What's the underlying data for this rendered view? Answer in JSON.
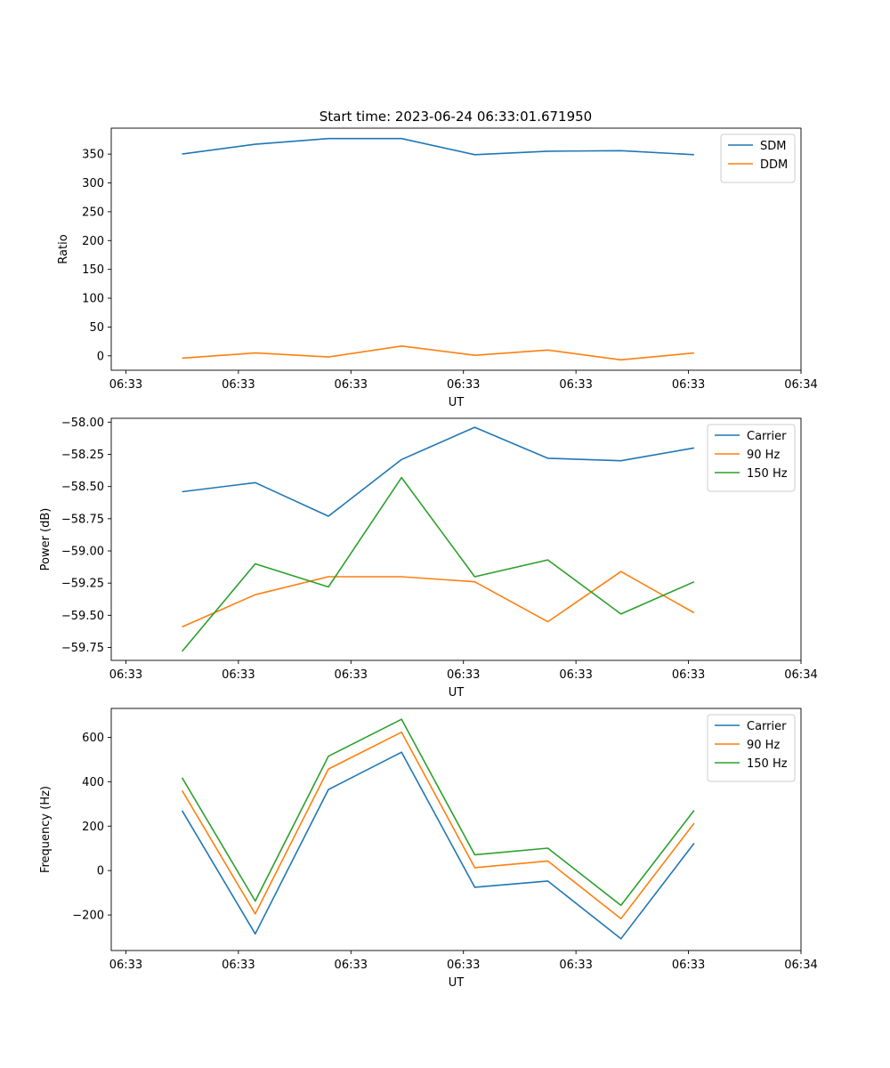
{
  "figure": {
    "title": "Start time: 2023-06-24 06:33:01.671950"
  },
  "chart_data": [
    {
      "type": "line",
      "title": "Start time: 2023-06-24 06:33:01.671950",
      "xlabel": "UT",
      "ylabel": "Ratio",
      "x_tick_labels": [
        "06:33",
        "06:33",
        "06:33",
        "06:33",
        "06:33",
        "06:33",
        "06:34"
      ],
      "x_tick_positions": [
        0,
        1,
        2,
        3,
        4,
        5,
        6
      ],
      "xlim": [
        -0.13,
        6.0
      ],
      "x": [
        0.5,
        1.15,
        1.8,
        2.45,
        3.1,
        3.75,
        4.4,
        5.05
      ],
      "ylim": [
        -25,
        395
      ],
      "y_ticks": [
        0,
        50,
        100,
        150,
        200,
        250,
        300,
        350
      ],
      "legend": "top-right",
      "series": [
        {
          "name": "SDM",
          "color": "#1f77b4",
          "values": [
            350,
            367,
            377,
            377,
            349,
            355,
            356,
            349
          ]
        },
        {
          "name": "DDM",
          "color": "#ff7f0e",
          "values": [
            -4,
            5,
            -2,
            17,
            1,
            10,
            -7,
            5
          ]
        }
      ]
    },
    {
      "type": "line",
      "title": "",
      "xlabel": "UT",
      "ylabel": "Power (dB)",
      "x_tick_labels": [
        "06:33",
        "06:33",
        "06:33",
        "06:33",
        "06:33",
        "06:33",
        "06:34"
      ],
      "x_tick_positions": [
        0,
        1,
        2,
        3,
        4,
        5,
        6
      ],
      "xlim": [
        -0.13,
        6.0
      ],
      "x": [
        0.5,
        1.15,
        1.8,
        2.45,
        3.1,
        3.75,
        4.4,
        5.05
      ],
      "ylim": [
        -59.85,
        -57.97
      ],
      "y_ticks": [
        -59.75,
        -59.5,
        -59.25,
        -59.0,
        -58.75,
        -58.5,
        -58.25,
        -58.0
      ],
      "y_tick_labels": [
        "−59.75",
        "−59.50",
        "−59.25",
        "−59.00",
        "−58.75",
        "−58.50",
        "−58.25",
        "−58.00"
      ],
      "legend": "top-right",
      "series": [
        {
          "name": "Carrier",
          "color": "#1f77b4",
          "values": [
            -58.54,
            -58.47,
            -58.73,
            -58.29,
            -58.04,
            -58.28,
            -58.3,
            -58.2
          ]
        },
        {
          "name": "90 Hz",
          "color": "#ff7f0e",
          "values": [
            -59.59,
            -59.34,
            -59.2,
            -59.2,
            -59.24,
            -59.55,
            -59.16,
            -59.48
          ]
        },
        {
          "name": "150 Hz",
          "color": "#2ca02c",
          "values": [
            -59.78,
            -59.1,
            -59.28,
            -58.43,
            -59.2,
            -59.07,
            -59.49,
            -59.24
          ]
        }
      ]
    },
    {
      "type": "line",
      "title": "",
      "xlabel": "UT",
      "ylabel": "Frequency (Hz)",
      "x_tick_labels": [
        "06:33",
        "06:33",
        "06:33",
        "06:33",
        "06:33",
        "06:33",
        "06:34"
      ],
      "x_tick_positions": [
        0,
        1,
        2,
        3,
        4,
        5,
        6
      ],
      "xlim": [
        -0.13,
        6.0
      ],
      "x": [
        0.5,
        1.15,
        1.8,
        2.45,
        3.1,
        3.75,
        4.4,
        5.05
      ],
      "ylim": [
        -360,
        730
      ],
      "y_ticks": [
        -200,
        0,
        200,
        400,
        600
      ],
      "y_tick_labels": [
        "−200",
        "0",
        "200",
        "400",
        "600"
      ],
      "legend": "top-right",
      "series": [
        {
          "name": "Carrier",
          "color": "#1f77b4",
          "values": [
            270,
            -285,
            365,
            533,
            -75,
            -47,
            -307,
            123
          ]
        },
        {
          "name": "90 Hz",
          "color": "#ff7f0e",
          "values": [
            360,
            -195,
            457,
            623,
            13,
            43,
            -217,
            213
          ]
        },
        {
          "name": "150 Hz",
          "color": "#2ca02c",
          "values": [
            418,
            -137,
            515,
            681,
            71,
            101,
            -157,
            271
          ]
        }
      ]
    }
  ]
}
